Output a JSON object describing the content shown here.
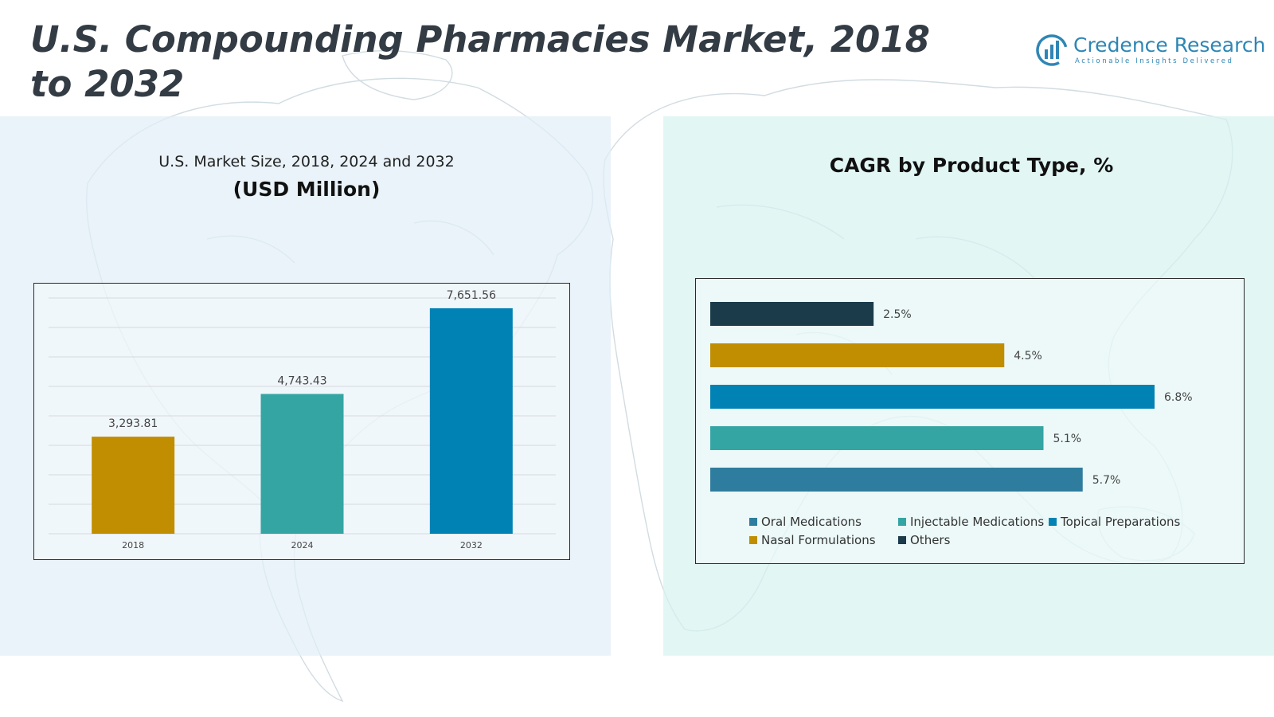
{
  "title": "U.S. Compounding Pharmacies Market, 2018 to 2032",
  "brand": {
    "name": "Credence Research",
    "tagline": "Actionable Insights Delivered",
    "logo_icon": "bar-chart-logo-icon"
  },
  "colors": {
    "gold": "#c08e00",
    "teal": "#34a5a3",
    "blue": "#0182b4",
    "steel": "#2f7d9e",
    "navy": "#1b3a4a",
    "brand": "#2e86b5"
  },
  "chart_data": [
    {
      "type": "bar",
      "title": "U.S. Market Size, 2018, 2024 and 2032",
      "subtitle": "(USD Million)",
      "categories": [
        "2018",
        "2024",
        "2032"
      ],
      "values": [
        3293.81,
        4743.43,
        7651.56
      ],
      "value_labels": [
        "3,293.81",
        "4,743.43",
        "7,651.56"
      ],
      "bar_colors": [
        "#c08e00",
        "#34a5a3",
        "#0182b4"
      ],
      "ylim": [
        0,
        8000
      ],
      "grid": true,
      "legend": "none"
    },
    {
      "type": "bar",
      "orientation": "horizontal",
      "title": "CAGR by Product Type, %",
      "categories": [
        "Others",
        "Nasal Formulations",
        "Topical Preparations",
        "Injectable Medications",
        "Oral Medications"
      ],
      "values": [
        2.5,
        4.5,
        6.8,
        5.1,
        5.7
      ],
      "value_labels": [
        "2.5%",
        "4.5%",
        "6.8%",
        "5.1%",
        "5.7%"
      ],
      "bar_colors": [
        "#1b3a4a",
        "#c08e00",
        "#0182b4",
        "#34a5a3",
        "#2f7d9e"
      ],
      "xlim": [
        0,
        6.8
      ],
      "grid": false,
      "legend": "bottom",
      "legend_order": [
        "Oral Medications",
        "Injectable Medications",
        "Topical Preparations",
        "Nasal Formulations",
        "Others"
      ]
    }
  ]
}
